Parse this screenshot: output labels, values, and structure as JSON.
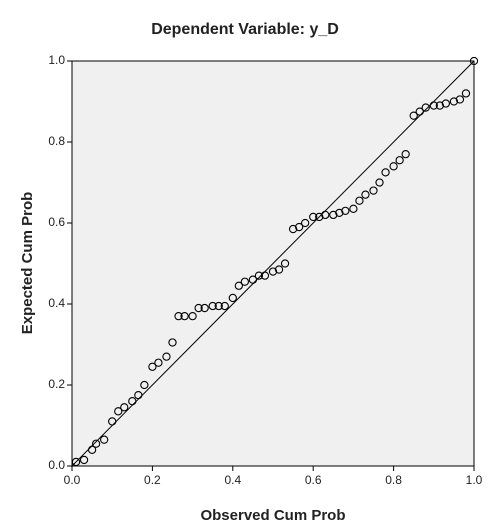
{
  "chart_data": {
    "type": "scatter",
    "title": "Dependent Variable: y_D",
    "xlabel": "Observed Cum Prob",
    "ylabel": "Expected Cum Prob",
    "xlim": [
      0,
      1
    ],
    "ylim": [
      0,
      1
    ],
    "xticks": [
      {
        "value": 0,
        "label": "0.0"
      },
      0.2,
      0.4,
      0.6,
      0.8,
      {
        "value": 1,
        "label": "1.0"
      }
    ],
    "yticks": [
      {
        "value": 0,
        "label": "0.0"
      },
      0.2,
      0.4,
      0.6,
      0.8,
      {
        "value": 1,
        "label": "1.0"
      }
    ],
    "color": "#000000",
    "x": [
      0.01,
      0.03,
      0.05,
      0.06,
      0.08,
      0.1,
      0.115,
      0.13,
      0.15,
      0.165,
      0.18,
      0.2,
      0.215,
      0.235,
      0.25,
      0.265,
      0.28,
      0.3,
      0.315,
      0.33,
      0.35,
      0.365,
      0.38,
      0.4,
      0.415,
      0.43,
      0.45,
      0.465,
      0.48,
      0.5,
      0.515,
      0.53,
      0.55,
      0.565,
      0.58,
      0.6,
      0.615,
      0.63,
      0.65,
      0.665,
      0.68,
      0.7,
      0.715,
      0.73,
      0.75,
      0.765,
      0.78,
      0.8,
      0.815,
      0.83,
      0.85,
      0.865,
      0.88,
      0.9,
      0.915,
      0.93,
      0.95,
      0.965,
      0.98,
      1.0
    ],
    "values": [
      0.01,
      0.015,
      0.04,
      0.055,
      0.065,
      0.11,
      0.135,
      0.145,
      0.16,
      0.175,
      0.2,
      0.245,
      0.255,
      0.27,
      0.305,
      0.37,
      0.37,
      0.37,
      0.39,
      0.39,
      0.395,
      0.395,
      0.395,
      0.415,
      0.445,
      0.455,
      0.46,
      0.47,
      0.47,
      0.48,
      0.485,
      0.5,
      0.585,
      0.59,
      0.6,
      0.615,
      0.615,
      0.62,
      0.62,
      0.625,
      0.63,
      0.635,
      0.655,
      0.67,
      0.68,
      0.7,
      0.725,
      0.74,
      0.755,
      0.77,
      0.865,
      0.875,
      0.885,
      0.89,
      0.89,
      0.895,
      0.9,
      0.905,
      0.92,
      1.0
    ]
  }
}
